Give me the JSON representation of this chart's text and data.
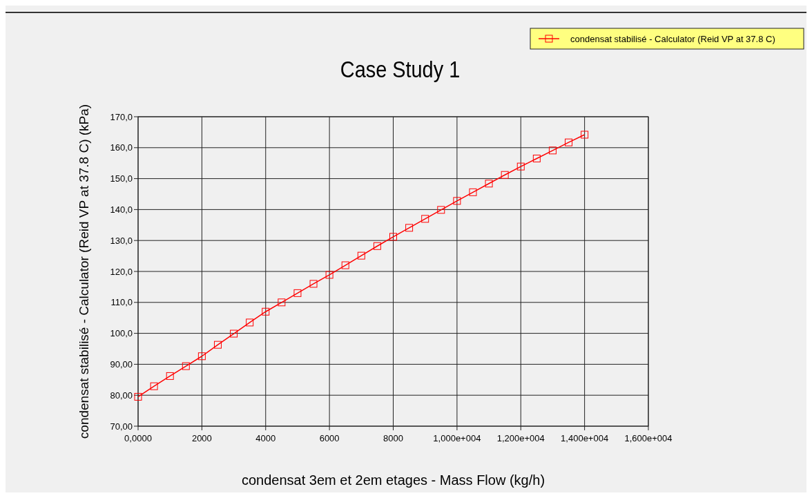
{
  "chart_data": {
    "type": "line",
    "title": "Case Study 1",
    "xlabel": "condensat 3em et 2em etages - Mass Flow (kg/h)",
    "ylabel": "condensat stabilisé - Calculator (Reid VP at 37.8 C) (kPa)",
    "x": [
      0,
      500,
      1000,
      1500,
      2000,
      2500,
      3000,
      3500,
      4000,
      4500,
      5000,
      5500,
      6000,
      6500,
      7000,
      7500,
      8000,
      8500,
      9000,
      9500,
      10000,
      10500,
      11000,
      11500,
      12000,
      12500,
      13000,
      13500,
      14000
    ],
    "series": [
      {
        "name": "condensat stabilisé - Calculator (Reid VP at 37.8 C)",
        "color": "#ff0000",
        "values": [
          79.5,
          82.9,
          86.2,
          89.4,
          92.6,
          96.3,
          99.9,
          103.5,
          107.0,
          110.0,
          113.0,
          116.0,
          118.9,
          122.0,
          125.1,
          128.2,
          131.2,
          134.1,
          137.0,
          139.9,
          142.8,
          145.6,
          148.4,
          151.2,
          153.9,
          156.5,
          159.1,
          161.7,
          164.2
        ]
      }
    ],
    "xlim": [
      0,
      16000
    ],
    "ylim": [
      70,
      170
    ],
    "xticks": [
      {
        "value": 0,
        "label": "0,0000"
      },
      2000,
      4000,
      6000,
      8000,
      {
        "value": 10000,
        "label": "1,000e+004"
      },
      {
        "value": 12000,
        "label": "1,200e+004"
      },
      {
        "value": 14000,
        "label": "1,400e+004"
      },
      {
        "value": 16000,
        "label": "1,600e+004"
      }
    ],
    "yticks": [
      {
        "value": 70,
        "label": "70,00"
      },
      {
        "value": 80,
        "label": "80,00"
      },
      {
        "value": 90,
        "label": "90,00"
      },
      {
        "value": 100,
        "label": "100,0"
      },
      {
        "value": 110,
        "label": "110,0"
      },
      {
        "value": 120,
        "label": "120,0"
      },
      {
        "value": 130,
        "label": "130,0"
      },
      {
        "value": 140,
        "label": "140,0"
      },
      {
        "value": 150,
        "label": "150,0"
      },
      {
        "value": 160,
        "label": "160,0"
      },
      {
        "value": 170,
        "label": "170,0"
      }
    ],
    "grid": true,
    "legend": "top right",
    "marker": "square",
    "line_style": "solid"
  }
}
